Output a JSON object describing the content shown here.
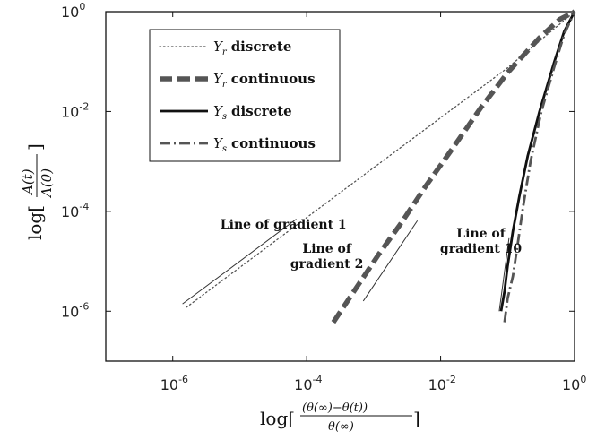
{
  "chart_data": {
    "type": "line",
    "xscale": "log",
    "yscale": "log",
    "xlim": [
      1e-07,
      1
    ],
    "ylim": [
      1e-07,
      1
    ],
    "xticks": [
      {
        "value": 1e-06,
        "base": "10",
        "exp": "-6"
      },
      {
        "value": 0.0001,
        "base": "10",
        "exp": "-4"
      },
      {
        "value": 0.01,
        "base": "10",
        "exp": "-2"
      },
      {
        "value": 1,
        "base": "10",
        "exp": "0"
      }
    ],
    "yticks": [
      {
        "value": 1e-06,
        "base": "10",
        "exp": "-6"
      },
      {
        "value": 0.0001,
        "base": "10",
        "exp": "-4"
      },
      {
        "value": 0.01,
        "base": "10",
        "exp": "-2"
      },
      {
        "value": 1,
        "base": "10",
        "exp": "0"
      }
    ],
    "xlabel": {
      "prefix": "log[",
      "numerator": "(θ(∞)−θ(t))",
      "denominator": "θ(∞)",
      "suffix": "]"
    },
    "ylabel": {
      "prefix": "log[",
      "numerator": "A(t)",
      "denominator": "A(0)",
      "suffix": "]"
    },
    "legend": {
      "placement": "top-left",
      "entries": [
        {
          "symbol": "Y",
          "subscript": "r",
          "text": "discrete"
        },
        {
          "symbol": "Y",
          "subscript": "r",
          "text": "continuous"
        },
        {
          "symbol": "Y",
          "subscript": "s",
          "text": "discrete"
        },
        {
          "symbol": "Y",
          "subscript": "s",
          "text": "continuous"
        }
      ]
    },
    "series": [
      {
        "style": "dotted",
        "color": "#555555",
        "width": 1.3,
        "x": [
          1.6e-06,
          1e-05,
          0.0001,
          0.001,
          0.01,
          0.1,
          1
        ],
        "y": [
          1.2e-06,
          7.5e-06,
          7.5e-05,
          0.00075,
          0.0075,
          0.075,
          1
        ]
      },
      {
        "style": "dashed",
        "color": "#555555",
        "width": 5.5,
        "x": [
          0.00025,
          0.0006,
          0.0012,
          0.0025,
          0.006,
          0.015,
          0.04,
          0.1,
          0.3,
          0.6,
          1
        ],
        "y": [
          6e-07,
          3.5e-06,
          1.4e-05,
          5.5e-05,
          0.00032,
          0.0018,
          0.012,
          0.06,
          0.3,
          0.7,
          1
        ]
      },
      {
        "style": "solid",
        "color": "#111111",
        "width": 2.8,
        "x": [
          0.08,
          0.09,
          0.1,
          0.12,
          0.15,
          0.2,
          0.3,
          0.5,
          0.7,
          1
        ],
        "y": [
          1e-06,
          2.5e-06,
          8e-06,
          4e-05,
          0.0002,
          0.0013,
          0.01,
          0.1,
          0.4,
          1
        ]
      },
      {
        "style": "dashdot",
        "color": "#555555",
        "width": 2.8,
        "x": [
          0.09,
          0.1,
          0.12,
          0.14,
          0.17,
          0.22,
          0.32,
          0.5,
          0.7,
          1
        ],
        "y": [
          6e-07,
          1.8e-06,
          5e-06,
          2e-05,
          0.00012,
          0.001,
          0.01,
          0.08,
          0.35,
          1
        ]
      }
    ],
    "reference_lines": [
      {
        "gradient": 1,
        "x": [
          1.4e-06,
          7e-05
        ],
        "y": [
          1.4e-06,
          7e-05
        ]
      },
      {
        "gradient": 2,
        "x": [
          0.0007,
          0.0045
        ],
        "y": [
          1.6e-06,
          6.5e-05
        ]
      },
      {
        "gradient": 10,
        "x": [
          0.075,
          0.105
        ],
        "y": [
          1e-06,
          2.9e-05
        ]
      }
    ],
    "annotations": [
      {
        "lines": [
          "Line of gradient 1"
        ],
        "x": 4.5e-05,
        "y": 4.5e-05
      },
      {
        "lines": [
          "Line of",
          "gradient 2"
        ],
        "x": 0.0002,
        "y": 1.5e-05
      },
      {
        "lines": [
          "Line of",
          "gradient 10"
        ],
        "x": 0.04,
        "y": 3e-05
      }
    ]
  }
}
